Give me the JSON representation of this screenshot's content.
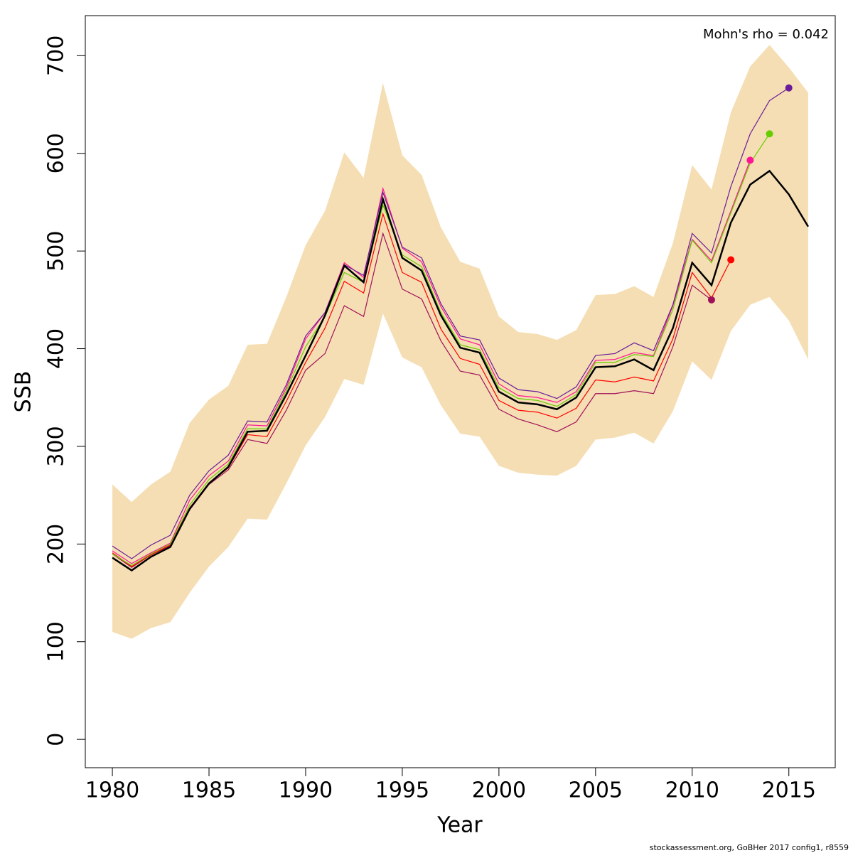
{
  "chart_data": {
    "type": "line",
    "ylabel": "SSB",
    "xlabel": "Year",
    "annotation": "Mohn's rho = 0.042",
    "footer": "stockassessment.org, GoBHer 2017 config1, r8559",
    "x": [
      1980,
      1981,
      1982,
      1983,
      1984,
      1985,
      1986,
      1987,
      1988,
      1989,
      1990,
      1991,
      1992,
      1993,
      1994,
      1995,
      1996,
      1997,
      1998,
      1999,
      2000,
      2001,
      2002,
      2003,
      2004,
      2005,
      2006,
      2007,
      2008,
      2009,
      2010,
      2011,
      2012,
      2013,
      2014,
      2015,
      2016
    ],
    "xlim": [
      1978.6,
      2017.4
    ],
    "xticks": [
      1980,
      1985,
      1990,
      1995,
      2000,
      2005,
      2010,
      2015
    ],
    "ylim": [
      -29,
      741
    ],
    "yticks": [
      0,
      100,
      200,
      300,
      400,
      500,
      600,
      700
    ],
    "band": {
      "color": "#f5deb3",
      "upper": [
        261,
        243,
        261,
        274,
        324,
        348,
        362,
        404,
        405,
        453,
        506,
        541,
        601,
        575,
        672,
        598,
        578,
        524,
        489,
        482,
        433,
        417,
        415,
        409,
        419,
        455,
        456,
        464,
        453,
        508,
        588,
        563,
        642,
        689,
        711,
        688,
        662
      ],
      "lower": [
        110,
        103,
        114,
        120,
        150,
        177,
        197,
        226,
        225,
        262,
        301,
        330,
        369,
        363,
        436,
        391,
        381,
        342,
        313,
        310,
        280,
        273,
        271,
        270,
        280,
        307,
        309,
        314,
        303,
        336,
        387,
        368,
        418,
        445,
        453,
        429,
        389
      ]
    },
    "retro": [
      {
        "color": "#a0105a",
        "values": [
          190,
          176,
          189,
          198,
          235,
          261,
          276,
          307,
          303,
          337,
          378,
          395,
          444,
          433,
          518,
          461,
          451,
          408,
          377,
          373,
          338,
          328,
          322,
          315,
          325,
          354,
          354,
          357,
          354,
          402,
          465,
          450
        ]
      },
      {
        "color": "#ff0000",
        "values": [
          191,
          177,
          189,
          199,
          237,
          262,
          278,
          312,
          310,
          346,
          386,
          421,
          469,
          457,
          538,
          478,
          468,
          420,
          390,
          384,
          347,
          337,
          335,
          329,
          339,
          368,
          366,
          371,
          367,
          410,
          478,
          452,
          491
        ]
      },
      {
        "color": "#ff1493",
        "values": [
          193,
          180,
          191,
          201,
          245,
          270,
          285,
          322,
          321,
          360,
          410,
          437,
          488,
          473,
          564,
          503,
          489,
          443,
          410,
          404,
          364,
          352,
          350,
          345,
          356,
          388,
          389,
          396,
          393,
          444,
          512,
          490,
          541,
          593
        ]
      },
      {
        "color": "#66cd00",
        "values": [
          190,
          178,
          190,
          200,
          240,
          266,
          282,
          318,
          318,
          357,
          402,
          433,
          478,
          468,
          547,
          496,
          484,
          437,
          404,
          399,
          360,
          349,
          347,
          341,
          353,
          386,
          386,
          394,
          392,
          440,
          511,
          488,
          539,
          590,
          620
        ]
      },
      {
        "color": "#6a1b9a",
        "values": [
          198,
          185,
          199,
          209,
          250,
          275,
          291,
          326,
          325,
          363,
          413,
          437,
          486,
          475,
          560,
          504,
          493,
          446,
          413,
          409,
          370,
          358,
          356,
          349,
          361,
          393,
          395,
          406,
          398,
          445,
          518,
          498,
          566,
          620,
          654,
          667
        ]
      }
    ],
    "series": [
      {
        "color": "#000000",
        "values": [
          186,
          173,
          187,
          197,
          236,
          262,
          279,
          315,
          316,
          353,
          393,
          434,
          485,
          468,
          553,
          493,
          480,
          434,
          401,
          396,
          356,
          345,
          343,
          338,
          350,
          381,
          382,
          389,
          378,
          421,
          488,
          465,
          529,
          568,
          582,
          558,
          525
        ]
      }
    ]
  }
}
